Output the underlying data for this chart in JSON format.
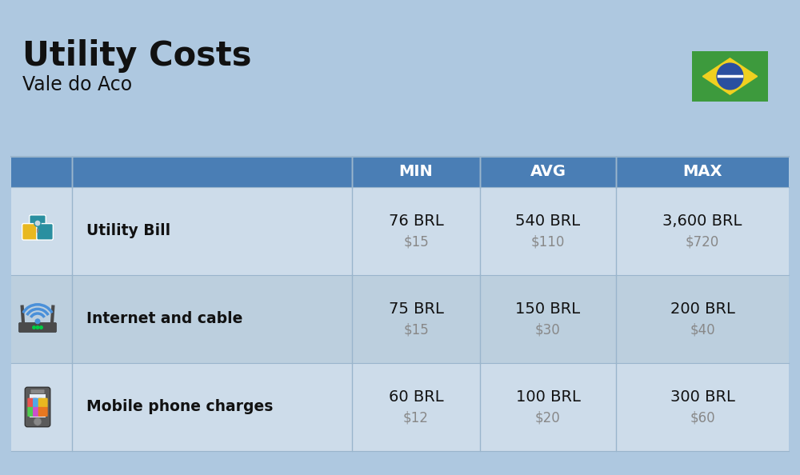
{
  "title": "Utility Costs",
  "subtitle": "Vale do Aco",
  "background_color": "#aec8e0",
  "header_color": "#4a7eb5",
  "header_text_color": "#ffffff",
  "row_color_odd": "#cddcea",
  "row_color_even": "#bccfde",
  "col_headers": [
    "MIN",
    "AVG",
    "MAX"
  ],
  "rows": [
    {
      "label": "Utility Bill",
      "icon": "utility",
      "min_brl": "76 BRL",
      "min_usd": "$15",
      "avg_brl": "540 BRL",
      "avg_usd": "$110",
      "max_brl": "3,600 BRL",
      "max_usd": "$720"
    },
    {
      "label": "Internet and cable",
      "icon": "internet",
      "min_brl": "75 BRL",
      "min_usd": "$15",
      "avg_brl": "150 BRL",
      "avg_usd": "$30",
      "max_brl": "200 BRL",
      "max_usd": "$40"
    },
    {
      "label": "Mobile phone charges",
      "icon": "mobile",
      "min_brl": "60 BRL",
      "min_usd": "$12",
      "avg_brl": "100 BRL",
      "avg_usd": "$20",
      "max_brl": "300 BRL",
      "max_usd": "$60"
    }
  ],
  "usd_color": "#888888",
  "text_color": "#111111",
  "label_fontsize": 13.5,
  "value_fontsize": 14,
  "usd_fontsize": 12,
  "header_fontsize": 14,
  "title_fontsize": 30,
  "subtitle_fontsize": 17,
  "divider_color": "#9ab5cc",
  "flag_green": "#3d9a3d",
  "flag_yellow": "#f0d020",
  "flag_blue": "#2a4fa0",
  "flag_white": "#ffffff"
}
